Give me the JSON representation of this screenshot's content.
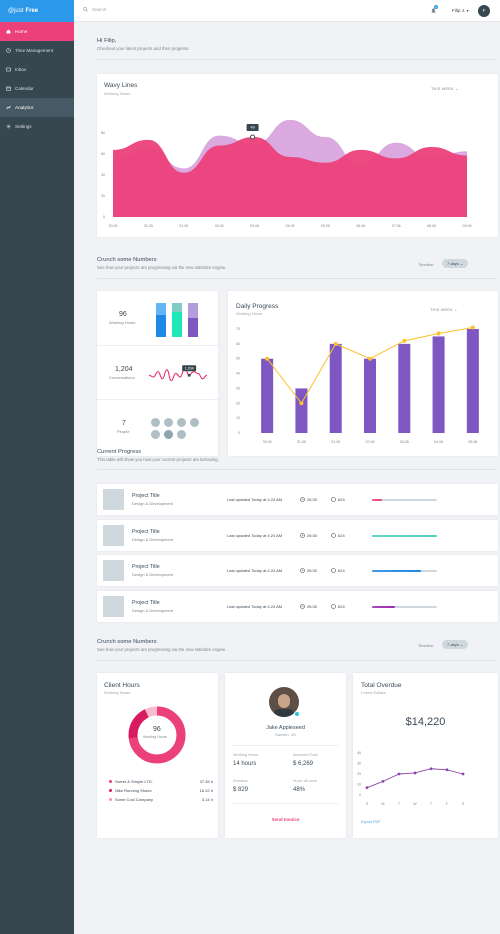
{
  "brand": {
    "prefix": "@just",
    "name": "Free"
  },
  "nav": [
    {
      "label": "Home",
      "icon": "home-icon"
    },
    {
      "label": "Time Management",
      "icon": "clock-icon"
    },
    {
      "label": "Inbox",
      "icon": "inbox-icon"
    },
    {
      "label": "Calendar",
      "icon": "calendar-icon"
    },
    {
      "label": "Analytics",
      "icon": "analytics-icon"
    },
    {
      "label": "Settings",
      "icon": "gear-icon"
    }
  ],
  "topbar": {
    "search_placeholder": "Search",
    "notification_count": "3",
    "user_name": "Filip J.",
    "avatar_initial": "F"
  },
  "greeting": {
    "title": "Hi Filip,",
    "subtitle": "Checkout your latest projects and their progress."
  },
  "wavy": {
    "title": "Wavy Lines",
    "subtitle": "Working Hours",
    "period": "THIS WEEK",
    "tooltip": "49",
    "chart_data": {
      "type": "area",
      "x": [
        "30.05",
        "31.05",
        "01.06",
        "02.06",
        "03.06",
        "04.06",
        "05.06",
        "06.06",
        "07.06",
        "08.06",
        "09.06"
      ],
      "ylim": [
        0,
        70
      ],
      "yticks": [
        "0",
        "20",
        "40",
        "60",
        "80"
      ],
      "series": [
        {
          "values": [
            40,
            48,
            34,
            57,
            51,
            68,
            56,
            37,
            52,
            41,
            46
          ],
          "color": "#d29ad9"
        },
        {
          "values": [
            47,
            54,
            31,
            50,
            56,
            42,
            38,
            47,
            41,
            49,
            43
          ],
          "color": "#ec407a"
        }
      ]
    }
  },
  "crunch1": {
    "title": "Crunch some Numbers",
    "subtitle": "See how your projects are progressing via the new statistics engine.",
    "timeline_label": "Timeline:",
    "timeline_value": "7 days"
  },
  "stats": {
    "working": {
      "value": "96",
      "label": "Working Hours"
    },
    "conversations": {
      "value": "1,204",
      "label": "Conversations",
      "tooltip": "1,204"
    },
    "people": {
      "value": "7",
      "label": "People"
    },
    "mini_bars": [
      {
        "top": 0.35,
        "color": "#64b5f6",
        "base": "#1e88e5"
      },
      {
        "top": 0.25,
        "color": "#80cbc4",
        "base": "#1de9b6"
      },
      {
        "top": 0.45,
        "color": "#b39ddb",
        "base": "#7e57c2"
      }
    ],
    "spark": [
      6,
      5,
      8,
      4,
      9,
      3,
      7,
      5,
      10,
      6,
      8,
      7,
      4,
      6
    ]
  },
  "daily": {
    "title": "Daily Progress",
    "subtitle": "Working Hours",
    "period": "THIS WEEK",
    "chart_data": {
      "type": "bar",
      "categories": [
        "30.06",
        "31.06",
        "01.06",
        "02.06",
        "03.06",
        "04.06",
        "05.06"
      ],
      "values": [
        50,
        30,
        60,
        50,
        60,
        65,
        70
      ],
      "line": [
        50,
        20,
        60,
        50,
        62,
        67,
        71
      ],
      "ylim": [
        0,
        70
      ],
      "yticks": [
        "0",
        "10",
        "20",
        "30",
        "40",
        "50",
        "60",
        "70"
      ]
    }
  },
  "current": {
    "title": "Current Progress",
    "subtitle": "This table will show you how your current projects are behaving."
  },
  "projects": [
    {
      "title": "Project Title",
      "subtitle": "Design & Development",
      "updated": "Last updated Today at 4:24 AM",
      "time": "26:30",
      "comments": "624",
      "progress": 0.15,
      "color": "#ec407a"
    },
    {
      "title": "Project Title",
      "subtitle": "Design & Development",
      "updated": "Last updated Today at 4:24 AM",
      "time": "26:30",
      "comments": "624",
      "progress": 1.0,
      "color": "#4dd0c4"
    },
    {
      "title": "Project Title",
      "subtitle": "Design & Development",
      "updated": "Last updated Today at 4:24 AM",
      "time": "26:30",
      "comments": "624",
      "progress": 0.75,
      "color": "#1e88e5"
    },
    {
      "title": "Project Title",
      "subtitle": "Design & Development",
      "updated": "Last updated Today at 4:24 AM",
      "time": "26:30",
      "comments": "624",
      "progress": 0.35,
      "color": "#9c27b0"
    }
  ],
  "crunch2": {
    "title": "Crunch some Numbers",
    "subtitle": "See how your projects are progressing via the new statistics engine.",
    "timeline_label": "Timeline:",
    "timeline_value": "7 days"
  },
  "client": {
    "title": "Client Hours",
    "subtitle": "Working Hours",
    "donut_value": "96",
    "donut_label": "Working Hours",
    "legend": [
      {
        "name": "Sweet & Simple LTD.",
        "value": "37.45 h",
        "color": "#ec407a"
      },
      {
        "name": "Nike Running Shoes",
        "value": "16.22 h",
        "color": "#d81b60"
      },
      {
        "name": "Some Cool Company",
        "value": "3.14 h",
        "color": "#f48fb1"
      }
    ]
  },
  "profile": {
    "name": "Jake Appleseed",
    "location": "Sweden, UK",
    "stats": [
      {
        "label": "Working Hours",
        "value": "14 hours"
      },
      {
        "label": "Achieved Total",
        "value": "$ 6,269"
      },
      {
        "label": "Overdue",
        "value": "$ 829"
      },
      {
        "label": "% per all work",
        "value": "48%"
      }
    ],
    "action": "Send Invoice"
  },
  "overdue": {
    "title": "Total Overdue",
    "subtitle": "I need Dollars",
    "amount": "$14,220",
    "chart_data": {
      "type": "line",
      "x": [
        "S",
        "M",
        "T",
        "W",
        "T",
        "F",
        "S"
      ],
      "values": [
        7,
        13,
        20,
        21,
        25,
        24,
        20
      ],
      "ylim": [
        0,
        40
      ],
      "yticks": [
        "0",
        "10",
        "20",
        "30",
        "40"
      ]
    },
    "export": "Export PDF"
  }
}
